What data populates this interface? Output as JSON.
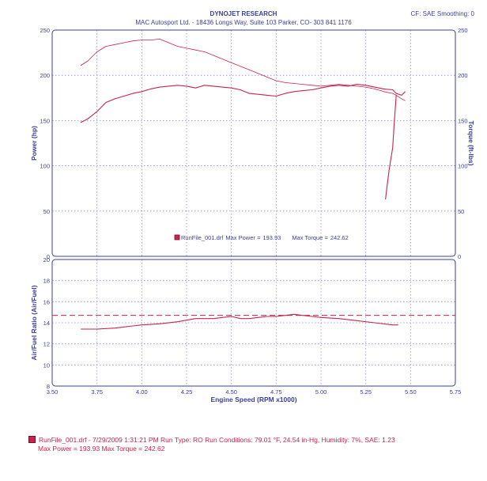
{
  "header": {
    "title": "DYNOJET RESEARCH",
    "subtitle": "MAC Autosport Ltd. - 18436 Longs Way, Suite 103 Parker, CO- 303 841 1176",
    "corner": "CF: SAE  Smoothing: 0"
  },
  "colors": {
    "ink": "#3a3f9a",
    "grid": "#8a8fd0",
    "trace": "#c8234a"
  },
  "chart_data": [
    {
      "type": "line",
      "xlim": [
        3.5,
        5.75
      ],
      "ylim": [
        0,
        250
      ],
      "xticks": [
        "3.50",
        "3.75",
        "4.00",
        "4.25",
        "4.50",
        "4.75",
        "5.00",
        "5.25",
        "5.50",
        "5.75"
      ],
      "yticks_left": [
        "0",
        "50",
        "100",
        "150",
        "200",
        "250"
      ],
      "yticks_right": [
        "0",
        "50",
        "100",
        "150",
        "200",
        "250"
      ],
      "ylabel": "Power (hp)",
      "ylabel_right": "Torque (ft-lbs)",
      "grid": true,
      "legend": {
        "run": "RunFile_001.drf",
        "max_power_label": "Max Power =",
        "max_power": "193.93",
        "max_torque_label": "Max Torque =",
        "max_torque": "242.62",
        "placement": "bottom-center"
      },
      "series": [
        {
          "name": "Power",
          "x": [
            3.66,
            3.7,
            3.75,
            3.8,
            3.85,
            3.9,
            3.95,
            4.0,
            4.05,
            4.1,
            4.15,
            4.2,
            4.25,
            4.3,
            4.35,
            4.4,
            4.45,
            4.5,
            4.55,
            4.6,
            4.65,
            4.7,
            4.75,
            4.8,
            4.85,
            4.9,
            4.95,
            5.0,
            5.05,
            5.1,
            5.15,
            5.2,
            5.25,
            5.3,
            5.35,
            5.4,
            5.42,
            5.45,
            5.47
          ],
          "y": [
            148,
            152,
            160,
            170,
            174,
            177,
            180,
            182,
            185,
            187,
            188,
            189,
            188,
            186,
            189,
            188,
            187,
            186,
            184,
            180,
            179,
            178,
            177,
            180,
            182,
            183,
            184,
            186,
            188,
            189,
            188,
            190,
            189,
            187,
            185,
            184,
            180,
            178,
            182
          ]
        },
        {
          "name": "Torque",
          "x": [
            3.66,
            3.7,
            3.75,
            3.8,
            3.85,
            3.9,
            3.95,
            4.0,
            4.05,
            4.1,
            4.15,
            4.2,
            4.25,
            4.3,
            4.35,
            4.4,
            4.45,
            4.5,
            4.55,
            4.6,
            4.65,
            4.7,
            4.75,
            4.8,
            4.85,
            4.9,
            4.95,
            5.0,
            5.05,
            5.1,
            5.15,
            5.2,
            5.25,
            5.3,
            5.35,
            5.4,
            5.42,
            5.45,
            5.47
          ],
          "y": [
            211,
            216,
            226,
            232,
            234,
            236,
            238,
            239,
            239,
            240,
            236,
            232,
            230,
            228,
            226,
            222,
            218,
            214,
            210,
            206,
            202,
            198,
            194,
            192,
            191,
            190,
            189,
            188,
            189,
            190,
            189,
            188,
            187,
            185,
            182,
            180,
            178,
            174,
            172
          ]
        },
        {
          "name": "Power (drop)",
          "x": [
            5.42,
            5.41,
            5.4,
            5.38,
            5.36
          ],
          "y": [
            178,
            150,
            120,
            95,
            63
          ]
        }
      ]
    },
    {
      "type": "line",
      "xlim": [
        3.5,
        5.75
      ],
      "ylim": [
        8,
        20
      ],
      "xticks": [
        "3.50",
        "3.75",
        "4.00",
        "4.25",
        "4.50",
        "4.75",
        "5.00",
        "5.25",
        "5.50",
        "5.75"
      ],
      "yticks_left": [
        "8",
        "10",
        "12",
        "14",
        "16",
        "18",
        "20"
      ],
      "ylabel": "Air/Fuel Ratio (Air/Fuel)",
      "xlabel": "Engine Speed (RPM x1000)",
      "grid": true,
      "reference_line": 14.7,
      "series": [
        {
          "name": "AFR",
          "x": [
            3.66,
            3.75,
            3.85,
            3.95,
            4.0,
            4.1,
            4.2,
            4.3,
            4.4,
            4.45,
            4.5,
            4.55,
            4.6,
            4.65,
            4.7,
            4.75,
            4.8,
            4.85,
            4.9,
            4.95,
            5.0,
            5.1,
            5.2,
            5.3,
            5.4,
            5.43
          ],
          "y": [
            13.4,
            13.4,
            13.5,
            13.7,
            13.8,
            13.9,
            14.1,
            14.4,
            14.4,
            14.5,
            14.6,
            14.4,
            14.4,
            14.5,
            14.6,
            14.6,
            14.7,
            14.8,
            14.7,
            14.6,
            14.5,
            14.4,
            14.2,
            14.0,
            13.8,
            13.8
          ]
        }
      ]
    }
  ],
  "footer": {
    "line1": "RunFile_001.drf - 7/29/2009 1:31:21 PM  Run Type: RO  Run Conditions: 79.01 °F, 24.54 in-Hg,  Humidity:  7%, SAE: 1.23",
    "line2": "Max Power = 193.93  Max Torque = 242.62"
  }
}
